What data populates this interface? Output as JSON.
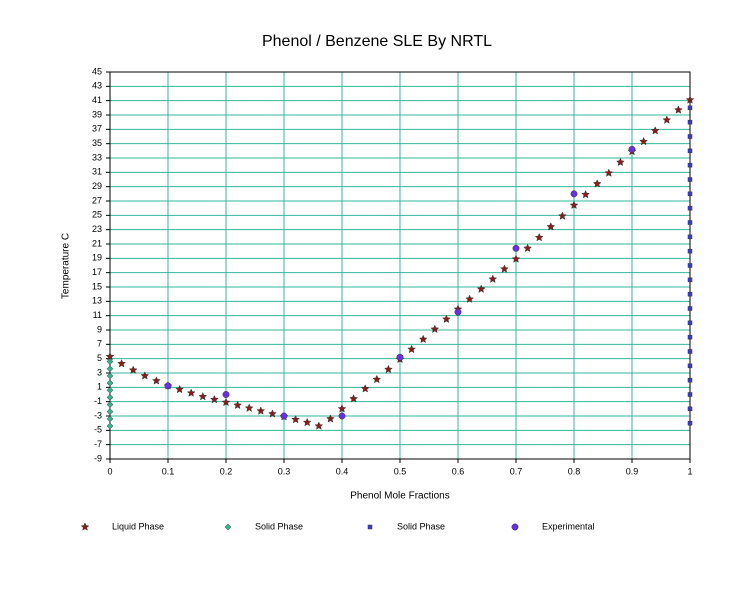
{
  "chart_data": {
    "type": "scatter",
    "title": "Phenol / Benzene SLE By NRTL",
    "x_label": "Phenol Mole Fractions",
    "y_label": "Temperature C",
    "xlim": [
      0,
      1
    ],
    "xticks": [
      0,
      0.1,
      0.2,
      0.3,
      0.4,
      0.5,
      0.6,
      0.7,
      0.8,
      0.9,
      1
    ],
    "ylim": [
      -9,
      45
    ],
    "yticks": [
      45,
      43,
      41,
      39,
      37,
      35,
      33,
      31,
      29,
      27,
      25,
      23,
      21,
      19,
      17,
      15,
      13,
      11,
      9,
      7,
      5,
      3,
      1,
      -1,
      -3,
      -5,
      -7,
      -9
    ],
    "grid": true,
    "grid_color": "#33b89c",
    "legend": "bottom",
    "series": [
      {
        "name": "Liquid Phase",
        "color": "#8b1c1c",
        "marker": "star",
        "x": [
          0,
          0.02,
          0.04,
          0.06,
          0.08,
          0.1,
          0.12,
          0.14,
          0.16,
          0.18,
          0.2,
          0.22,
          0.24,
          0.26,
          0.28,
          0.3,
          0.32,
          0.34,
          0.36,
          0.38,
          0.4,
          0.42,
          0.44,
          0.46,
          0.48,
          0.5,
          0.52,
          0.54,
          0.56,
          0.58,
          0.6,
          0.62,
          0.64,
          0.66,
          0.68,
          0.7,
          0.72,
          0.74,
          0.76,
          0.78,
          0.8,
          0.82,
          0.84,
          0.86,
          0.88,
          0.9,
          0.92,
          0.94,
          0.96,
          0.98,
          1
        ],
        "values": [
          5.3,
          4.3,
          3.4,
          2.6,
          1.9,
          1.2,
          0.7,
          0.2,
          -0.3,
          -0.7,
          -1.1,
          -1.5,
          -1.9,
          -2.3,
          -2.7,
          -3.1,
          -3.5,
          -3.9,
          -4.4,
          -3.4,
          -2.0,
          -0.6,
          0.8,
          2.1,
          3.5,
          4.9,
          6.3,
          7.7,
          9.1,
          10.5,
          11.9,
          13.3,
          14.7,
          16.1,
          17.5,
          18.9,
          20.4,
          21.9,
          23.4,
          24.9,
          26.4,
          27.9,
          29.4,
          30.9,
          32.4,
          33.9,
          35.3,
          36.8,
          38.3,
          39.7,
          41.1
        ]
      },
      {
        "name": "Solid Phase",
        "color": "#2fb890",
        "marker": "diamond",
        "x": [
          0,
          0,
          0,
          0,
          0,
          0,
          0,
          0,
          0,
          0
        ],
        "values": [
          -4.4,
          -3.4,
          -2.4,
          -1.4,
          -0.4,
          0.6,
          1.6,
          2.6,
          3.6,
          4.6
        ]
      },
      {
        "name": "Solid Phase",
        "color": "#3b3bd0",
        "marker": "square",
        "x": [
          1,
          1,
          1,
          1,
          1,
          1,
          1,
          1,
          1,
          1,
          1,
          1,
          1,
          1,
          1,
          1,
          1,
          1,
          1,
          1,
          1,
          1,
          1
        ],
        "values": [
          -4,
          -2,
          0,
          2,
          4,
          6,
          8,
          10,
          12,
          14,
          16,
          18,
          20,
          22,
          24,
          26,
          28,
          30,
          32,
          34,
          36,
          38,
          40
        ]
      },
      {
        "name": "Experimental",
        "color": "#6a30e0",
        "marker": "circle",
        "x": [
          0.1,
          0.2,
          0.3,
          0.4,
          0.5,
          0.6,
          0.7,
          0.8,
          0.9
        ],
        "values": [
          1.2,
          0,
          -3,
          -3,
          5.2,
          11.5,
          20.4,
          28,
          34.2
        ]
      }
    ]
  }
}
